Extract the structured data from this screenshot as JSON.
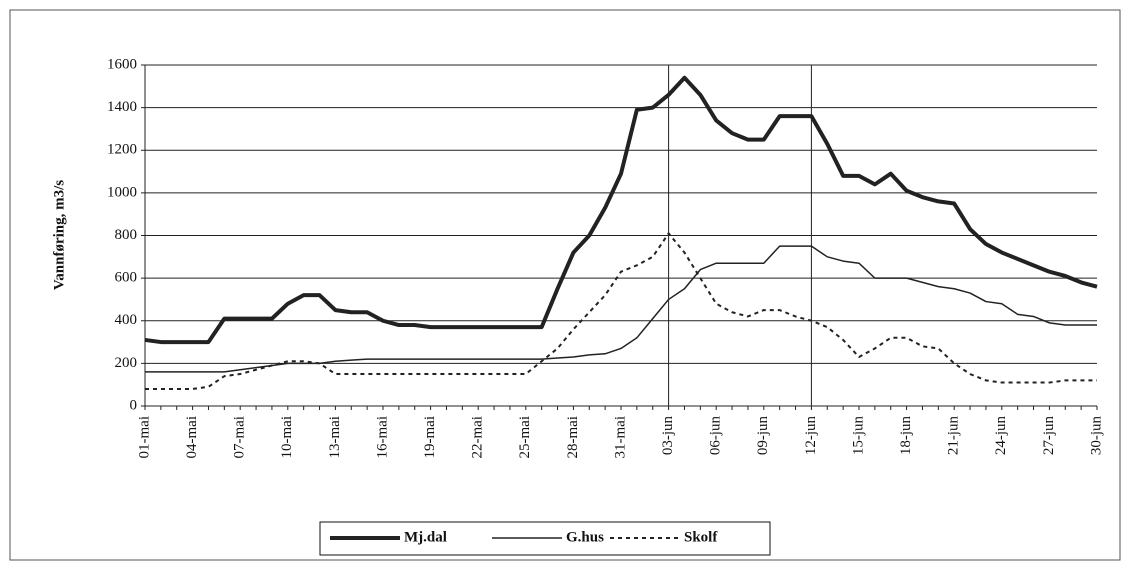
{
  "chart_data": {
    "type": "line",
    "y_label": "Vannføring, m3/s",
    "categories": [
      "01-mai",
      null,
      null,
      "04-mai",
      null,
      null,
      "07-mai",
      null,
      null,
      "10-mai",
      null,
      null,
      "13-mai",
      null,
      null,
      "16-mai",
      null,
      null,
      "19-mai",
      null,
      null,
      "22-mai",
      null,
      null,
      "25-mai",
      null,
      null,
      "28-mai",
      null,
      null,
      "31-mai",
      null,
      null,
      "03-jun",
      null,
      null,
      "06-jun",
      null,
      null,
      "09-jun",
      null,
      null,
      "12-jun",
      null,
      null,
      "15-jun",
      null,
      null,
      "18-jun",
      null,
      null,
      "21-jun",
      null,
      null,
      "24-jun",
      null,
      null,
      "27-jun",
      null,
      null,
      "30-jun"
    ],
    "series": [
      {
        "name": "Mj.dal",
        "color": "#222222",
        "width": 4,
        "dash": false,
        "values": [
          310,
          300,
          300,
          300,
          300,
          410,
          410,
          410,
          410,
          480,
          520,
          520,
          450,
          440,
          440,
          400,
          380,
          380,
          370,
          370,
          370,
          370,
          370,
          370,
          370,
          370,
          550,
          720,
          800,
          930,
          1090,
          1390,
          1400,
          1460,
          1540,
          1460,
          1340,
          1280,
          1250,
          1250,
          1360,
          1360,
          1360,
          1230,
          1080,
          1080,
          1040,
          1090,
          1010,
          980,
          960,
          950,
          830,
          760,
          720,
          690,
          660,
          630,
          610,
          580,
          560
        ]
      },
      {
        "name": "G.hus",
        "color": "#222222",
        "width": 1.5,
        "dash": false,
        "values": [
          160,
          160,
          160,
          160,
          160,
          160,
          170,
          180,
          190,
          200,
          200,
          200,
          210,
          215,
          220,
          220,
          220,
          220,
          220,
          220,
          220,
          220,
          220,
          220,
          220,
          220,
          225,
          230,
          240,
          245,
          270,
          320,
          410,
          500,
          550,
          640,
          670,
          670,
          670,
          670,
          750,
          750,
          750,
          700,
          680,
          670,
          600,
          600,
          600,
          580,
          560,
          550,
          530,
          490,
          480,
          430,
          420,
          390,
          380,
          380,
          380
        ]
      },
      {
        "name": "Skolf",
        "color": "#222222",
        "width": 2,
        "dash": true,
        "values": [
          80,
          80,
          80,
          80,
          90,
          140,
          150,
          170,
          190,
          210,
          210,
          200,
          150,
          150,
          150,
          150,
          150,
          150,
          150,
          150,
          150,
          150,
          150,
          150,
          150,
          210,
          270,
          360,
          440,
          520,
          630,
          660,
          700,
          810,
          720,
          600,
          480,
          440,
          420,
          450,
          450,
          420,
          400,
          370,
          310,
          230,
          270,
          320,
          320,
          280,
          270,
          200,
          150,
          120,
          110,
          110,
          110,
          110,
          120,
          120,
          120
        ]
      }
    ],
    "ylim": [
      0,
      1600
    ],
    "yticks": [
      0,
      200,
      400,
      600,
      800,
      1000,
      1200,
      1400,
      1600
    ],
    "grid": true,
    "vlines": [
      "03-jun",
      "12-jun"
    ],
    "legend": "bottom"
  }
}
